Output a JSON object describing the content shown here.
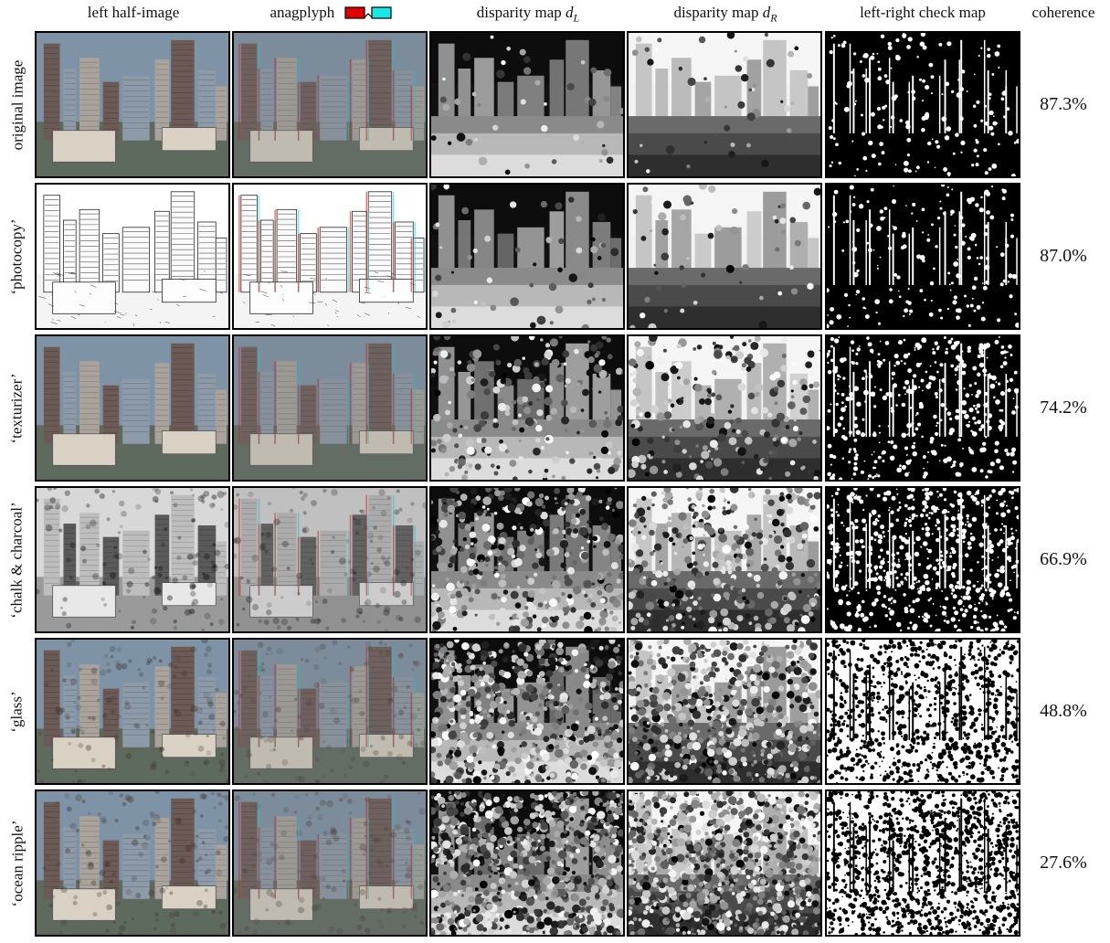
{
  "columns": {
    "left": "left half-image",
    "anag": "anagplyph",
    "dl_prefix": "disparity map ",
    "dl_var": "d",
    "dl_sub": "L",
    "dr_prefix": "disparity map ",
    "dr_var": "d",
    "dr_sub": "R",
    "lr": "left-right check map",
    "coh": "coherence"
  },
  "rows": [
    {
      "label": "original image",
      "coherence": "87.3%"
    },
    {
      "label": "‘photocopy’",
      "coherence": "87.0%"
    },
    {
      "label": "‘texturizer’",
      "coherence": "74.2%"
    },
    {
      "label": "‘chalk & charcoal’",
      "coherence": "66.9%"
    },
    {
      "label": "‘glass’",
      "coherence": "48.8%"
    },
    {
      "label": "‘ocean ripple’",
      "coherence": "27.6%"
    }
  ],
  "colors": {
    "anaglyph_red": "#e00000",
    "anaglyph_cyan": "#19e6e6"
  }
}
